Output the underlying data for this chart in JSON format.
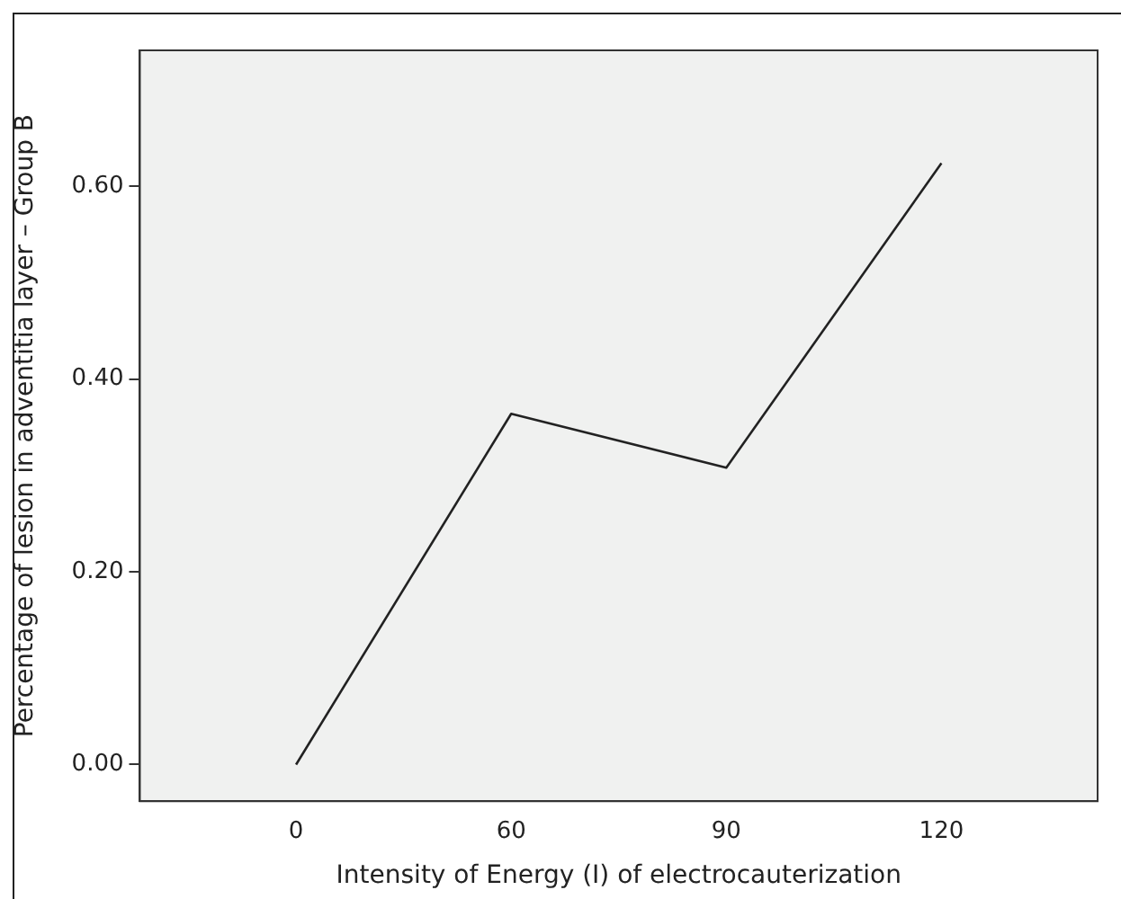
{
  "chart_data": {
    "type": "line",
    "xlabel": "Intensity of Energy (I) of electrocauterization",
    "ylabel": "Percentage of lesion in adventitia layer – Group B",
    "categories": [
      "0",
      "60",
      "90",
      "120"
    ],
    "series": [
      {
        "color": "#222222",
        "values": [
          0,
          0.364,
          0.308,
          0.624
        ]
      }
    ],
    "ylim": [
      -0.038,
      0.741
    ],
    "yticks": [
      {
        "value": 0,
        "label": "0.00"
      },
      {
        "value": 0.2,
        "label": "0.20"
      },
      {
        "value": 0.4,
        "label": "0.40"
      },
      {
        "value": 0.6,
        "label": "0.60"
      }
    ],
    "grid": false,
    "legend": false,
    "marker": "none",
    "line_style": "solid"
  }
}
